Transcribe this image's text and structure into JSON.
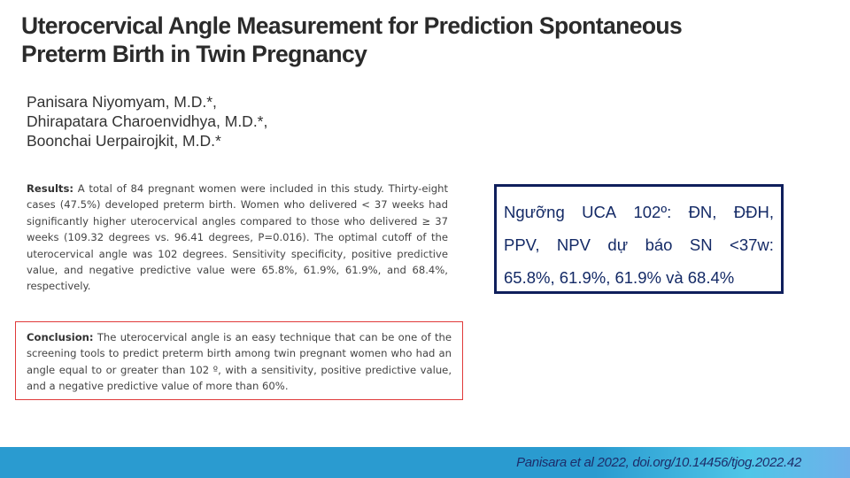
{
  "title": "Uterocervical Angle Measurement for Prediction Spontaneous Preterm Birth in Twin Pregnancy",
  "authors": [
    "Panisara Niyomyam, M.D.*,",
    "Dhirapatara Charoenvidhya, M.D.*,",
    "Boonchai Uerpairojkit, M.D.*"
  ],
  "results": {
    "label": "Results:",
    "text": " A total of 84 pregnant women were included in this study. Thirty-eight cases (47.5%) developed preterm birth. Women who delivered < 37 weeks had significantly higher uterocervical angles compared to those who delivered ≥ 37 weeks (109.32 degrees vs. 96.41 degrees, P=0.016). The optimal cutoff of the uterocervical angle was 102 degrees. Sensitivity specificity, positive predictive value, and negative predictive value were 65.8%, 61.9%, 61.9%, and 68.4%, respectively."
  },
  "conclusion": {
    "label": "Conclusion:",
    "text": " The uterocervical angle is an easy technique that can be one of the screening tools to predict preterm birth among twin pregnant women who had an angle equal to or greater than 102 º, with a sensitivity, positive predictive value, and a negative predictive value of more than 60%."
  },
  "summary_box": {
    "lines": [
      [
        "Ngưỡng",
        "UCA",
        "102º:",
        "ĐN,",
        "ĐĐH,"
      ],
      [
        "PPV,",
        "NPV",
        "dự",
        "báo",
        "SN",
        "<37w:"
      ],
      [
        "65.8%, 61.9%, 61.9% và 68.4%"
      ]
    ]
  },
  "footer": {
    "citation": "Panisara et al 2022, doi.org/10.14456/tjog.2022.42"
  },
  "colors": {
    "title": "#2b2b2b",
    "box_border": "#0f1f5c",
    "conclusion_border": "#e03a3a",
    "footer": "#2a9bd0"
  }
}
